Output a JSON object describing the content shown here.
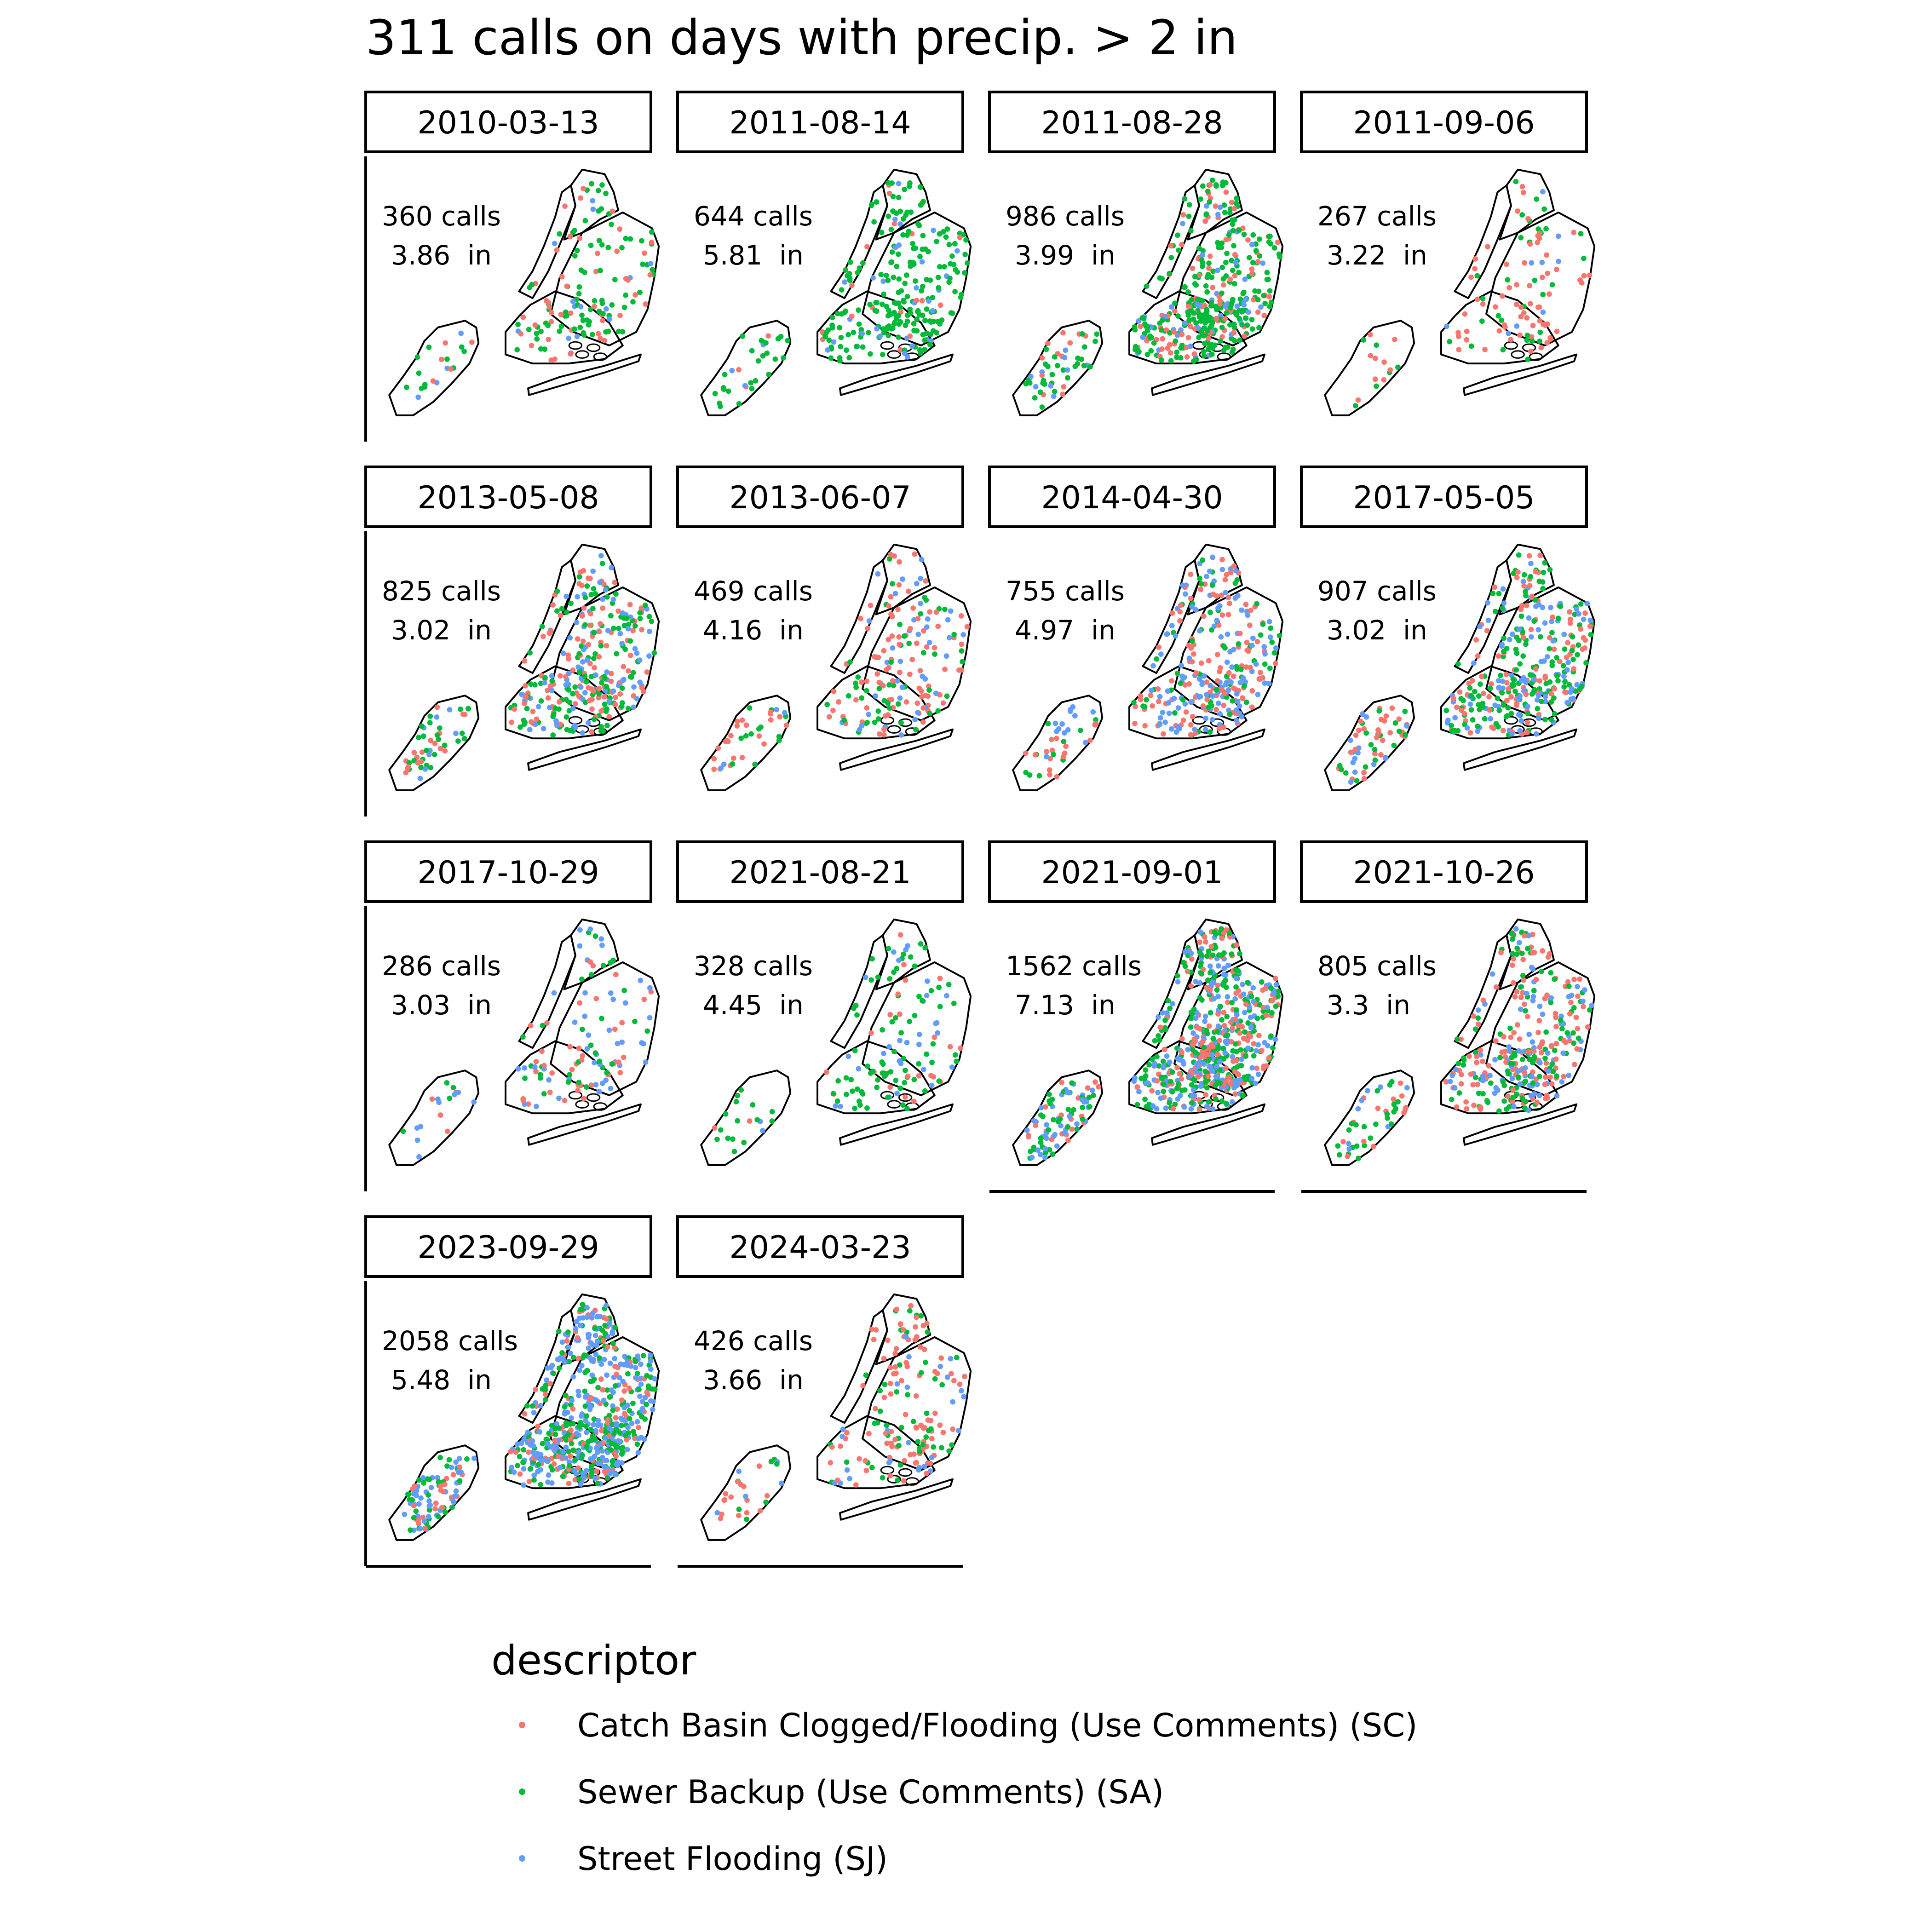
{
  "title": "311 calls on days with precip. > 2 in",
  "colors": {
    "catch_basin": "#F8766D",
    "sewer_backup": "#00BA38",
    "street_flooding": "#619CFF",
    "outline": "#000000"
  },
  "panels": [
    {
      "date": "2010-03-13",
      "calls_text": "360 calls",
      "precip_text": "3.86  in",
      "calls": 360,
      "precip": 3.86,
      "mix": [
        0.3,
        0.6,
        0.1
      ]
    },
    {
      "date": "2011-08-14",
      "calls_text": "644 calls",
      "precip_text": "5.81  in",
      "calls": 644,
      "precip": 5.81,
      "mix": [
        0.08,
        0.8,
        0.12
      ]
    },
    {
      "date": "2011-08-28",
      "calls_text": "986 calls",
      "precip_text": "3.99  in",
      "calls": 986,
      "precip": 3.99,
      "mix": [
        0.25,
        0.63,
        0.12
      ]
    },
    {
      "date": "2011-09-06",
      "calls_text": "267 calls",
      "precip_text": "3.22  in",
      "calls": 267,
      "precip": 3.22,
      "mix": [
        0.55,
        0.35,
        0.1
      ]
    },
    {
      "date": "2013-05-08",
      "calls_text": "825 calls",
      "precip_text": "3.02  in",
      "calls": 825,
      "precip": 3.02,
      "mix": [
        0.34,
        0.4,
        0.26
      ]
    },
    {
      "date": "2013-06-07",
      "calls_text": "469 calls",
      "precip_text": "4.16  in",
      "calls": 469,
      "precip": 4.16,
      "mix": [
        0.48,
        0.34,
        0.18
      ]
    },
    {
      "date": "2014-04-30",
      "calls_text": "755 calls",
      "precip_text": "4.97  in",
      "calls": 755,
      "precip": 4.97,
      "mix": [
        0.42,
        0.26,
        0.32
      ]
    },
    {
      "date": "2017-05-05",
      "calls_text": "907 calls",
      "precip_text": "3.02  in",
      "calls": 907,
      "precip": 3.02,
      "mix": [
        0.34,
        0.36,
        0.3
      ]
    },
    {
      "date": "2017-10-29",
      "calls_text": "286 calls",
      "precip_text": "3.03  in",
      "calls": 286,
      "precip": 3.03,
      "mix": [
        0.36,
        0.3,
        0.34
      ]
    },
    {
      "date": "2021-08-21",
      "calls_text": "328 calls",
      "precip_text": "4.45  in",
      "calls": 328,
      "precip": 4.45,
      "mix": [
        0.18,
        0.62,
        0.2
      ]
    },
    {
      "date": "2021-09-01",
      "calls_text": "1562 calls",
      "precip_text": "7.13  in",
      "calls": 1562,
      "precip": 7.13,
      "mix": [
        0.28,
        0.38,
        0.34
      ]
    },
    {
      "date": "2021-10-26",
      "calls_text": "805 calls",
      "precip_text": "3.3  in",
      "calls": 805,
      "precip": 3.3,
      "mix": [
        0.4,
        0.33,
        0.27
      ]
    },
    {
      "date": "2023-09-29",
      "calls_text": "2058 calls",
      "precip_text": "5.48  in",
      "calls": 2058,
      "precip": 5.48,
      "mix": [
        0.22,
        0.33,
        0.45
      ]
    },
    {
      "date": "2024-03-23",
      "calls_text": "426 calls",
      "precip_text": "3.66  in",
      "calls": 426,
      "precip": 3.66,
      "mix": [
        0.45,
        0.37,
        0.18
      ]
    }
  ],
  "legend": {
    "title": "descriptor",
    "items": [
      {
        "label": "Catch Basin Clogged/Flooding (Use Comments) (SC)",
        "color": "#F8766D"
      },
      {
        "label": "Sewer Backup (Use Comments) (SA)",
        "color": "#00BA38"
      },
      {
        "label": "Street Flooding (SJ)",
        "color": "#619CFF"
      }
    ]
  }
}
